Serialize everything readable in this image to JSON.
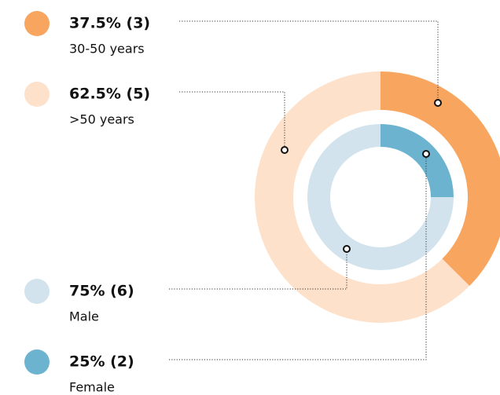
{
  "chart_data": [
    {
      "type": "donut",
      "categories": [
        "30-50 years",
        ">50 years"
      ],
      "values": [
        37.5,
        62.5
      ],
      "value_labels": [
        "37.5% (3)",
        "62.5% (5)"
      ],
      "colors": [
        "#f8a55f",
        "#fde1ca"
      ]
    },
    {
      "type": "donut",
      "categories": [
        "Male",
        "Female"
      ],
      "values": [
        75,
        25
      ],
      "value_labels": [
        "75% (6)",
        "25% (2)"
      ],
      "colors": [
        "#d2e3ed",
        "#6cb3d0"
      ]
    }
  ]
}
